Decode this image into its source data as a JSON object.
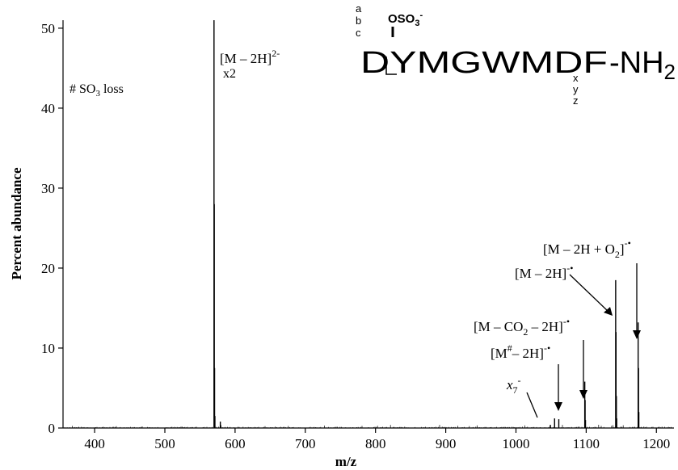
{
  "chart_data": {
    "type": "line",
    "xlabel": "m/z",
    "ylabel": "Percent abundance",
    "xlim": [
      355,
      1225
    ],
    "ylim": [
      0,
      51
    ],
    "x_ticks": [
      "400",
      "500",
      "600",
      "700",
      "800",
      "900",
      "1000",
      "1100",
      "1200"
    ],
    "y_ticks": [
      "0",
      "10",
      "20",
      "30",
      "40",
      "50"
    ],
    "peaks": [
      {
        "mz": 570,
        "abundance": 51,
        "label": "[M – 2H]2- x2"
      },
      {
        "mz": 570.4,
        "abundance": 28
      },
      {
        "mz": 570.8,
        "abundance": 7.5
      },
      {
        "mz": 571.3,
        "abundance": 1.5
      },
      {
        "mz": 579,
        "abundance": 0.8
      },
      {
        "mz": 1049,
        "abundance": 0.4
      },
      {
        "mz": 1055,
        "abundance": 1.2
      },
      {
        "mz": 1061,
        "abundance": 1.1
      },
      {
        "mz": 1098,
        "abundance": 5.8
      },
      {
        "mz": 1098.5,
        "abundance": 3.5
      },
      {
        "mz": 1099,
        "abundance": 1.0
      },
      {
        "mz": 1142,
        "abundance": 18.5
      },
      {
        "mz": 1142.5,
        "abundance": 12
      },
      {
        "mz": 1143,
        "abundance": 4
      },
      {
        "mz": 1143.5,
        "abundance": 1.2
      },
      {
        "mz": 1174,
        "abundance": 13.2
      },
      {
        "mz": 1174.5,
        "abundance": 7.5
      },
      {
        "mz": 1175,
        "abundance": 2
      }
    ],
    "grid": false,
    "legend": "none"
  },
  "annotations": {
    "so3_loss": {
      "hash": "#",
      "so3": "SO",
      "sub": "3",
      "loss": " loss"
    },
    "m2h_2minus": {
      "pre": "[M – 2H]",
      "sup": "2-",
      "x2": "x2"
    },
    "m2h_o2": {
      "pre": "[M – 2H + O",
      "sub": "2",
      "post": "]",
      "sup": "-•"
    },
    "m2h": {
      "pre": "[M – 2H]",
      "sup": "-•"
    },
    "m_co2": {
      "pre": "[M – CO",
      "sub": "2",
      "post": " – 2H]",
      "sup": "-•"
    },
    "m_hash": {
      "pre": "[M",
      "hash": "#",
      "post": "– 2H]",
      "sup": "-•"
    },
    "x7": {
      "x": "x",
      "sub": "7",
      "sup": "-"
    }
  },
  "peptide": {
    "sequence": "DYMGWMDF",
    "amide": "-NH",
    "amide_sub": "2",
    "sulfate": "OSO",
    "sulfate_sub": "3",
    "sulfate_sup": "-",
    "ions_left": [
      "a",
      "b",
      "c"
    ],
    "ions_right": [
      "x",
      "y",
      "z"
    ]
  },
  "colors": {
    "trace": "#000000",
    "background": "#ffffff"
  }
}
